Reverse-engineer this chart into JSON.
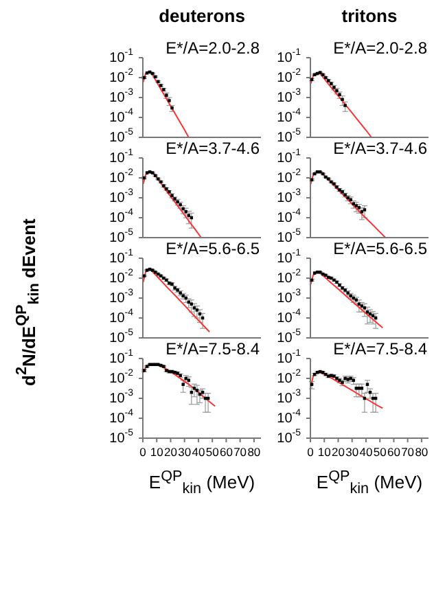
{
  "chart_data": [
    {
      "type": "scatter",
      "title": "deuterons",
      "annotations": [
        "E*/A=2.0-2.8"
      ],
      "xlim": [
        0,
        85
      ],
      "xticks": [
        0,
        10,
        20,
        30,
        40,
        50,
        60,
        70,
        80
      ],
      "ylim": [
        1e-05,
        0.1
      ],
      "yticks": [
        {
          "value": 0.1,
          "label": "10$^{-1}$"
        },
        {
          "value": 0.01,
          "label": "10$^{-2}$"
        },
        {
          "value": 0.001,
          "label": "10$^{-3}$"
        },
        {
          "value": 0.0001,
          "label": "10$^{-4}$"
        },
        {
          "value": 1e-05,
          "label": "10$^{-5}$"
        }
      ],
      "log": "y",
      "tick_labels": "y",
      "series": [
        {
          "type": "scatter",
          "color": "#000000",
          "marker": "square",
          "x": [
            1,
            3,
            5,
            7,
            9,
            11,
            13,
            15,
            17,
            19,
            21
          ],
          "values": [
            0.01,
            0.017,
            0.019,
            0.016,
            0.011,
            0.0063,
            0.004,
            0.0025,
            0.0013,
            0.0007,
            0.0003
          ],
          "errors": [
            0.001,
            null,
            0.001,
            0.001,
            0.001,
            0.0006,
            0.0005,
            0.0004,
            0.0004,
            0.0003,
            0.0001
          ]
        },
        {
          "type": "line",
          "color": "#ff3333",
          "marker": "none",
          "line_style": "solid",
          "x": [
            0.3,
            2,
            4,
            6,
            10,
            15,
            20,
            25,
            30,
            33
          ],
          "values": [
            0.006,
            0.016,
            0.02,
            0.018,
            0.006,
            0.0015,
            0.00038,
            9.5e-05,
            2.4e-05,
            1e-05
          ]
        }
      ]
    },
    {
      "type": "scatter",
      "title": "tritons",
      "annotations": [
        "E*/A=2.0-2.8"
      ],
      "xlim": [
        0,
        85
      ],
      "xticks": [
        0,
        10,
        20,
        30,
        40,
        50,
        60,
        70,
        80
      ],
      "ylim": [
        1e-05,
        0.1
      ],
      "yticks": [
        {
          "value": 0.1,
          "label": "10$^{-1}$"
        },
        {
          "value": 0.01,
          "label": "10$^{-2}$"
        },
        {
          "value": 0.001,
          "label": "10$^{-3}$"
        },
        {
          "value": 0.0001,
          "label": "10$^{-4}$"
        },
        {
          "value": 1e-05,
          "label": "10$^{-5}$"
        }
      ],
      "log": "y",
      "tick_labels": "y",
      "series": [
        {
          "type": "scatter",
          "color": "#000000",
          "marker": "square",
          "x": [
            1,
            3,
            5,
            7,
            9,
            11,
            13,
            15,
            17,
            19,
            21,
            23,
            25
          ],
          "values": [
            0.008,
            0.014,
            0.016,
            0.018,
            0.014,
            0.01,
            0.007,
            0.005,
            0.0032,
            0.0022,
            0.0014,
            0.0008,
            0.0004
          ],
          "errors": [
            0.001,
            0.001,
            0.001,
            0.001,
            0.001,
            0.001,
            0.001,
            0.0008,
            0.0008,
            0.0007,
            0.0005,
            0.0004,
            0.0002
          ]
        },
        {
          "type": "line",
          "color": "#ff3333",
          "marker": "none",
          "line_style": "solid",
          "x": [
            0.3,
            2,
            4,
            7,
            10,
            15,
            20,
            25,
            30,
            35,
            40,
            44
          ],
          "values": [
            0.005,
            0.012,
            0.016,
            0.016,
            0.0087,
            0.0032,
            0.0012,
            0.00045,
            0.00017,
            6.2e-05,
            2.3e-05,
            1e-05
          ]
        }
      ]
    },
    {
      "type": "scatter",
      "ylabel": "d$^{2}$N/dE$^{QP}$$_{kin}$ dEvent",
      "annotations": [
        "E*/A=3.7-4.6"
      ],
      "xlim": [
        0,
        85
      ],
      "xticks": [
        0,
        10,
        20,
        30,
        40,
        50,
        60,
        70,
        80
      ],
      "ylim": [
        1e-05,
        0.1
      ],
      "yticks": [
        {
          "value": 0.1,
          "label": "10$^{-1}$"
        },
        {
          "value": 0.01,
          "label": "10$^{-2}$"
        },
        {
          "value": 0.001,
          "label": "10$^{-3}$"
        },
        {
          "value": 0.0001,
          "label": "10$^{-4}$"
        },
        {
          "value": 1e-05,
          "label": "10$^{-5}$"
        }
      ],
      "log": "y",
      "tick_labels": "y",
      "series": [
        {
          "type": "scatter",
          "color": "#000000",
          "marker": "square",
          "x": [
            1,
            3,
            5,
            7,
            9,
            11,
            13,
            15,
            17,
            19,
            21,
            23,
            25,
            27,
            29,
            31,
            33,
            35
          ],
          "values": [
            0.01,
            0.018,
            0.02,
            0.018,
            0.013,
            0.0089,
            0.0063,
            0.004,
            0.0028,
            0.002,
            0.0013,
            0.00089,
            0.00063,
            0.00045,
            0.00028,
            0.0002,
            0.00013,
            0.0001
          ],
          "errors": [
            0.001,
            null,
            0.001,
            0.001,
            0.001,
            0.0008,
            0.0006,
            0.0005,
            0.0004,
            0.0003,
            0.0003,
            0.0002,
            0.0002,
            0.00015,
            0.00012,
            0.0001,
            8e-05,
            7e-05
          ]
        },
        {
          "type": "line",
          "color": "#ff3333",
          "marker": "none",
          "line_style": "solid",
          "x": [
            0.3,
            2,
            5,
            8,
            12,
            17,
            22,
            27,
            32,
            37,
            42
          ],
          "values": [
            0.005,
            0.014,
            0.02,
            0.016,
            0.0066,
            0.0022,
            0.00076,
            0.00026,
            8.7e-05,
            3e-05,
            1e-05
          ]
        }
      ]
    },
    {
      "type": "scatter",
      "annotations": [
        "E*/A=3.7-4.6"
      ],
      "xlim": [
        0,
        85
      ],
      "xticks": [
        0,
        10,
        20,
        30,
        40,
        50,
        60,
        70,
        80
      ],
      "ylim": [
        1e-05,
        0.1
      ],
      "yticks": [
        {
          "value": 0.1,
          "label": "10$^{-1}$"
        },
        {
          "value": 0.01,
          "label": "10$^{-2}$"
        },
        {
          "value": 0.001,
          "label": "10$^{-3}$"
        },
        {
          "value": 0.0001,
          "label": "10$^{-4}$"
        },
        {
          "value": 1e-05,
          "label": "10$^{-5}$"
        }
      ],
      "log": "y",
      "tick_labels": "y",
      "series": [
        {
          "type": "scatter",
          "color": "#000000",
          "marker": "square",
          "x": [
            1,
            3,
            5,
            7,
            9,
            11,
            13,
            15,
            17,
            19,
            21,
            23,
            25,
            27,
            29,
            31,
            33,
            35,
            37,
            39
          ],
          "values": [
            0.008,
            0.016,
            0.02,
            0.02,
            0.016,
            0.011,
            0.0089,
            0.0063,
            0.005,
            0.0035,
            0.0025,
            0.002,
            0.0014,
            0.001,
            0.0008,
            0.0005,
            0.0004,
            0.00032,
            0.0002,
            0.00025
          ],
          "errors": [
            0.0008,
            0.001,
            0.001,
            0.001,
            0.001,
            0.0008,
            0.0007,
            0.0006,
            0.0005,
            0.0005,
            0.0004,
            0.0004,
            0.0003,
            0.0003,
            0.0003,
            0.0002,
            0.0002,
            0.00015,
            0.00012,
            0.00015
          ]
        },
        {
          "type": "line",
          "color": "#ff3333",
          "marker": "none",
          "line_style": "solid",
          "x": [
            0.3,
            2,
            5,
            8,
            14,
            20,
            26,
            32,
            38,
            44,
            50,
            54
          ],
          "values": [
            0.005,
            0.014,
            0.02,
            0.018,
            0.0068,
            0.0025,
            0.00095,
            0.00035,
            0.00013,
            5.1e-05,
            1.9e-05,
            1e-05
          ]
        }
      ]
    },
    {
      "type": "scatter",
      "annotations": [
        "E*/A=5.6-6.5"
      ],
      "xlim": [
        0,
        85
      ],
      "xticks": [
        0,
        10,
        20,
        30,
        40,
        50,
        60,
        70,
        80
      ],
      "ylim": [
        1e-05,
        0.1
      ],
      "yticks": [
        {
          "value": 0.1,
          "label": "10$^{-1}$"
        },
        {
          "value": 0.01,
          "label": "10$^{-2}$"
        },
        {
          "value": 0.001,
          "label": "10$^{-3}$"
        },
        {
          "value": 0.0001,
          "label": "10$^{-4}$"
        },
        {
          "value": 1e-05,
          "label": "10$^{-5}$"
        }
      ],
      "log": "y",
      "tick_labels": "y",
      "series": [
        {
          "type": "scatter",
          "color": "#000000",
          "marker": "square",
          "x": [
            1,
            3,
            5,
            7,
            9,
            11,
            13,
            15,
            17,
            19,
            21,
            23,
            25,
            27,
            29,
            31,
            33,
            35,
            37,
            39,
            41,
            43
          ],
          "values": [
            0.013,
            0.025,
            0.028,
            0.025,
            0.02,
            0.016,
            0.013,
            0.01,
            0.008,
            0.0056,
            0.005,
            0.0032,
            0.0025,
            0.0018,
            0.0013,
            0.001,
            0.00063,
            0.0005,
            0.00032,
            0.00025,
            0.00016,
            0.0001
          ],
          "errors": [
            0.001,
            0.0015,
            0.0015,
            0.0015,
            0.0015,
            0.001,
            0.001,
            0.001,
            0.001,
            0.0008,
            0.0008,
            0.0007,
            0.0006,
            0.0005,
            0.0004,
            0.0004,
            0.0003,
            0.0003,
            0.0002,
            0.00015,
            0.0001,
            7e-05
          ]
        },
        {
          "type": "line",
          "color": "#ff3333",
          "marker": "none",
          "line_style": "solid",
          "x": [
            0.3,
            2,
            4,
            6,
            12,
            18,
            24,
            30,
            36,
            42,
            48
          ],
          "values": [
            0.0063,
            0.02,
            0.028,
            0.025,
            0.0091,
            0.0032,
            0.0012,
            0.00043,
            0.00015,
            5.5e-05,
            2e-05
          ]
        }
      ]
    },
    {
      "type": "scatter",
      "annotations": [
        "E*/A=5.6-6.5"
      ],
      "xlim": [
        0,
        85
      ],
      "xticks": [
        0,
        10,
        20,
        30,
        40,
        50,
        60,
        70,
        80
      ],
      "ylim": [
        1e-05,
        0.1
      ],
      "yticks": [
        {
          "value": 0.1,
          "label": "10$^{-1}$"
        },
        {
          "value": 0.01,
          "label": "10$^{-2}$"
        },
        {
          "value": 0.001,
          "label": "10$^{-3}$"
        },
        {
          "value": 0.0001,
          "label": "10$^{-4}$"
        },
        {
          "value": 1e-05,
          "label": "10$^{-5}$"
        }
      ],
      "log": "y",
      "tick_labels": "y",
      "series": [
        {
          "type": "scatter",
          "color": "#000000",
          "marker": "square",
          "x": [
            1,
            3,
            5,
            7,
            9,
            11,
            13,
            15,
            17,
            19,
            21,
            23,
            25,
            27,
            29,
            31,
            33,
            35,
            37,
            39,
            41,
            43,
            45,
            47
          ],
          "values": [
            0.008,
            0.018,
            0.02,
            0.02,
            0.016,
            0.014,
            0.011,
            0.01,
            0.008,
            0.0063,
            0.0045,
            0.0032,
            0.0025,
            0.0018,
            0.0013,
            0.001,
            0.0008,
            0.0005,
            0.0004,
            0.00032,
            0.0002,
            0.00016,
            0.00013,
            0.0001
          ],
          "errors": [
            0.0008,
            null,
            0.001,
            0.001,
            0.001,
            0.001,
            0.001,
            0.001,
            0.0008,
            0.0008,
            0.0007,
            0.0006,
            0.0005,
            0.0005,
            0.0004,
            0.0004,
            0.0003,
            0.0003,
            0.0002,
            0.0002,
            0.00015,
            0.0001,
            8e-05,
            7e-05
          ]
        },
        {
          "type": "line",
          "color": "#ff3333",
          "marker": "none",
          "line_style": "solid",
          "x": [
            0.3,
            2,
            4,
            7,
            13,
            19,
            25,
            31,
            37,
            43,
            52
          ],
          "values": [
            0.005,
            0.014,
            0.019,
            0.018,
            0.0076,
            0.0033,
            0.0014,
            0.0006,
            0.00026,
            0.00011,
            3.2e-05
          ]
        }
      ]
    },
    {
      "type": "scatter",
      "xlabel": "E$^{QP}$$_{kin}$ (MeV)",
      "annotations": [
        "E*/A=7.5-8.4"
      ],
      "xlim": [
        0,
        85
      ],
      "xticks": [
        0,
        10,
        20,
        30,
        40,
        50,
        60,
        70,
        80
      ],
      "ylim": [
        1e-05,
        0.1
      ],
      "yticks": [
        {
          "value": 0.1,
          "label": "10$^{-1}$"
        },
        {
          "value": 0.01,
          "label": "10$^{-2}$"
        },
        {
          "value": 0.001,
          "label": "10$^{-3}$"
        },
        {
          "value": 0.0001,
          "label": "10$^{-4}$"
        },
        {
          "value": 1e-05,
          "label": "10$^{-5}$"
        }
      ],
      "log": "y",
      "series": [
        {
          "type": "scatter",
          "color": "#000000",
          "marker": "square",
          "x": [
            1,
            3,
            5,
            7,
            9,
            11,
            13,
            15,
            17,
            19,
            21,
            23,
            25,
            27,
            29,
            31,
            33,
            35,
            37,
            39,
            41,
            43,
            45,
            47
          ],
          "values": [
            0.025,
            0.04,
            0.05,
            0.05,
            0.05,
            0.05,
            0.045,
            0.04,
            0.025,
            0.022,
            0.022,
            0.02,
            0.018,
            0.014,
            0.005,
            0.01,
            0.008,
            0.002,
            0.0032,
            0.0025,
            0.0016,
            0.002,
            0.001,
            0.001
          ],
          "errors": [
            0.003,
            0.003,
            0.003,
            0.003,
            0.003,
            0.003,
            0.003,
            0.003,
            0.003,
            0.003,
            0.003,
            0.003,
            0.003,
            0.003,
            0.003,
            0.004,
            0.004,
            0.0015,
            0.002,
            0.002,
            0.001,
            0.001,
            0.0008,
            0.0008
          ]
        },
        {
          "type": "line",
          "color": "#ff3333",
          "marker": "none",
          "line_style": "solid",
          "x": [
            0.3,
            2,
            5,
            10,
            15,
            20,
            25,
            30,
            35,
            40,
            45,
            52
          ],
          "values": [
            0.02,
            0.035,
            0.05,
            0.05,
            0.035,
            0.022,
            0.0126,
            0.0071,
            0.004,
            0.002,
            0.001,
            0.0004
          ]
        }
      ]
    },
    {
      "type": "scatter",
      "xlabel": "E$^{QP}$$_{kin}$ (MeV)",
      "annotations": [
        "E*/A=7.5-8.4"
      ],
      "xlim": [
        0,
        85
      ],
      "xticks": [
        0,
        10,
        20,
        30,
        40,
        50,
        60,
        70,
        80
      ],
      "ylim": [
        1e-05,
        0.1
      ],
      "yticks": [
        {
          "value": 0.1,
          "label": "10$^{-1}$"
        },
        {
          "value": 0.01,
          "label": "10$^{-2}$"
        },
        {
          "value": 0.001,
          "label": "10$^{-3}$"
        },
        {
          "value": 0.0001,
          "label": "10$^{-4}$"
        },
        {
          "value": 1e-05,
          "label": "10$^{-5}$"
        }
      ],
      "log": "y",
      "series": [
        {
          "type": "scatter",
          "color": "#000000",
          "marker": "square",
          "x": [
            1,
            3,
            5,
            7,
            9,
            11,
            13,
            15,
            17,
            19,
            21,
            23,
            25,
            27,
            29,
            31,
            33,
            35,
            37,
            39,
            41,
            43,
            45,
            47
          ],
          "values": [
            0.005,
            0.016,
            0.02,
            0.022,
            0.02,
            0.016,
            0.013,
            0.014,
            0.013,
            0.01,
            0.008,
            0.0063,
            0.01,
            0.0089,
            0.01,
            0.008,
            0.0032,
            0.0032,
            0.0032,
            0.001,
            0.005,
            0.002,
            0.001,
            0.001
          ],
          "errors": [
            0.002,
            0.002,
            0.002,
            0.002,
            0.002,
            0.002,
            0.002,
            0.002,
            0.002,
            0.002,
            0.002,
            0.002,
            0.003,
            0.003,
            0.003,
            0.003,
            0.002,
            0.002,
            0.002,
            0.0008,
            0.003,
            0.001,
            0.0008,
            0.0008
          ]
        },
        {
          "type": "line",
          "color": "#ff3333",
          "marker": "none",
          "line_style": "solid",
          "x": [
            0.3,
            2,
            4,
            7,
            12,
            18,
            24,
            30,
            36,
            42,
            48,
            52
          ],
          "values": [
            0.004,
            0.0126,
            0.018,
            0.02,
            0.014,
            0.008,
            0.0045,
            0.0025,
            0.0014,
            0.0008,
            0.00045,
            0.00032
          ]
        }
      ]
    }
  ]
}
